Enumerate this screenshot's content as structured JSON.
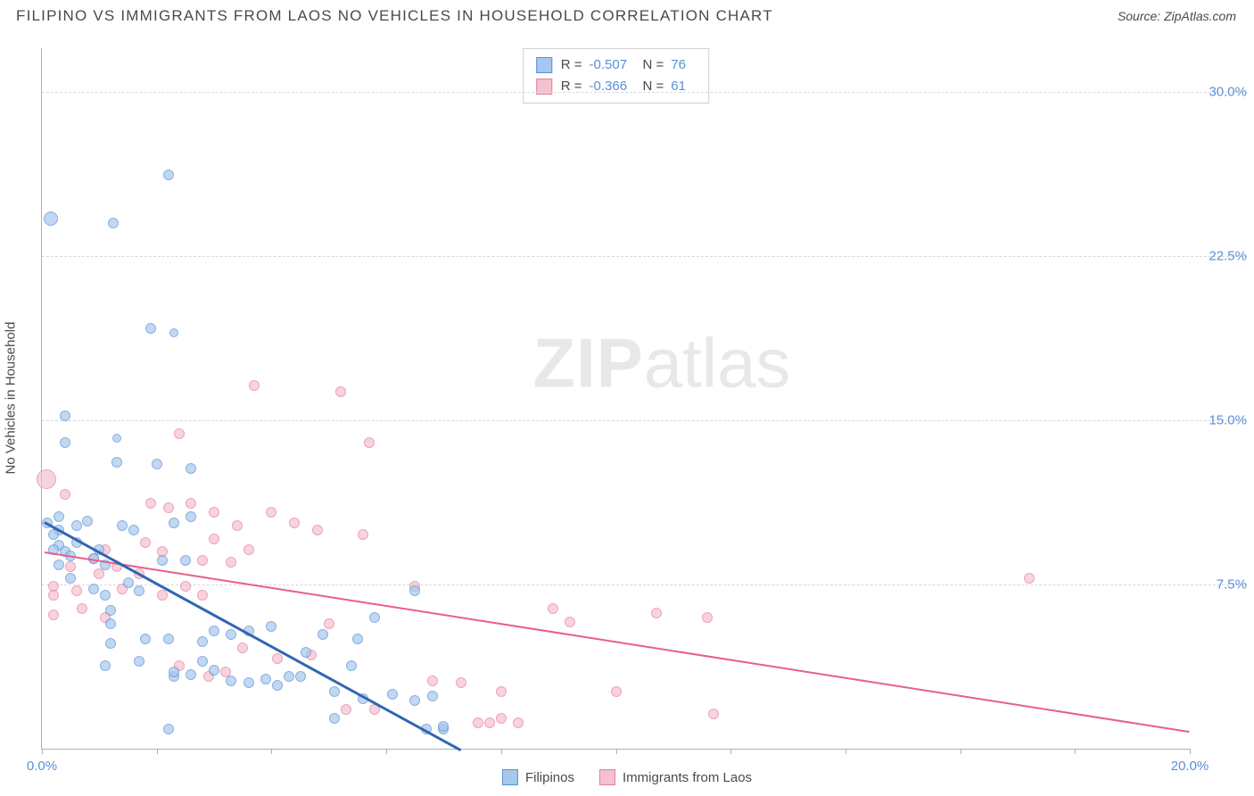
{
  "title": "FILIPINO VS IMMIGRANTS FROM LAOS NO VEHICLES IN HOUSEHOLD CORRELATION CHART",
  "source_label": "Source: ZipAtlas.com",
  "ylabel": "No Vehicles in Household",
  "watermark_bold": "ZIP",
  "watermark_rest": "atlas",
  "chart": {
    "xlim": [
      0,
      20
    ],
    "ylim": [
      0,
      32
    ],
    "xtick_labels": {
      "0": "0.0%",
      "20": "20.0%"
    },
    "xtick_positions": [
      0,
      2,
      4,
      6,
      8,
      10,
      12,
      14,
      16,
      18,
      20
    ],
    "ytick_labels": {
      "7.5": "7.5%",
      "15": "15.0%",
      "22.5": "22.5%",
      "30": "30.0%"
    },
    "grid_y": [
      7.5,
      15,
      22.5,
      30
    ],
    "colors": {
      "blue_fill": "#a6c8ec",
      "blue_stroke": "#5a8fd6",
      "pink_fill": "#f4c2ce",
      "pink_stroke": "#e87ba0",
      "blue_line": "#2f66b3",
      "pink_line": "#e65f8c",
      "axis_text": "#5a8fd6",
      "label_text": "#4a4a4a"
    }
  },
  "stats": [
    {
      "swatch_fill": "#a6c8ec",
      "swatch_stroke": "#5a8fd6",
      "r_label": "R =",
      "r": "-0.507",
      "n_label": "N =",
      "n": "76"
    },
    {
      "swatch_fill": "#f4c2ce",
      "swatch_stroke": "#e87ba0",
      "r_label": "R =",
      "r": "-0.366",
      "n_label": "N =",
      "n": "61"
    }
  ],
  "legend": [
    {
      "swatch_fill": "#a6c8ec",
      "swatch_stroke": "#5a8fd6",
      "label": "Filipinos"
    },
    {
      "swatch_fill": "#f4c2ce",
      "swatch_stroke": "#e87ba0",
      "label": "Immigrants from Laos"
    }
  ],
  "trend_lines": {
    "blue": {
      "x1": 0.05,
      "y1": 10.4,
      "x2": 7.3,
      "y2": 0,
      "color": "#2f66b3",
      "width": 2.5
    },
    "pink": {
      "x1": 0.05,
      "y1": 9.0,
      "x2": 20,
      "y2": 0.8,
      "color": "#e65f8c",
      "width": 2
    }
  },
  "series_blue": [
    {
      "x": 0.15,
      "y": 24.2,
      "r": 8
    },
    {
      "x": 1.25,
      "y": 24.0,
      "r": 6
    },
    {
      "x": 2.2,
      "y": 26.2,
      "r": 6
    },
    {
      "x": 1.9,
      "y": 19.2,
      "r": 6
    },
    {
      "x": 2.3,
      "y": 19.0,
      "r": 5
    },
    {
      "x": 0.4,
      "y": 15.2,
      "r": 6
    },
    {
      "x": 0.4,
      "y": 14.0,
      "r": 6
    },
    {
      "x": 1.3,
      "y": 13.1,
      "r": 6
    },
    {
      "x": 1.3,
      "y": 14.2,
      "r": 5
    },
    {
      "x": 2.0,
      "y": 13.0,
      "r": 6
    },
    {
      "x": 2.6,
      "y": 12.8,
      "r": 6
    },
    {
      "x": 0.3,
      "y": 10.6,
      "r": 6
    },
    {
      "x": 0.3,
      "y": 10.0,
      "r": 6
    },
    {
      "x": 0.3,
      "y": 9.3,
      "r": 6
    },
    {
      "x": 0.2,
      "y": 9.1,
      "r": 6
    },
    {
      "x": 0.4,
      "y": 9.0,
      "r": 6
    },
    {
      "x": 0.6,
      "y": 10.2,
      "r": 6
    },
    {
      "x": 0.8,
      "y": 10.4,
      "r": 6
    },
    {
      "x": 1.0,
      "y": 9.1,
      "r": 6
    },
    {
      "x": 1.4,
      "y": 10.2,
      "r": 6
    },
    {
      "x": 1.6,
      "y": 10.0,
      "r": 6
    },
    {
      "x": 2.3,
      "y": 10.3,
      "r": 6
    },
    {
      "x": 2.6,
      "y": 10.6,
      "r": 6
    },
    {
      "x": 0.3,
      "y": 8.4,
      "r": 6
    },
    {
      "x": 0.5,
      "y": 7.8,
      "r": 6
    },
    {
      "x": 0.9,
      "y": 7.3,
      "r": 6
    },
    {
      "x": 1.1,
      "y": 7.0,
      "r": 6
    },
    {
      "x": 1.1,
      "y": 8.4,
      "r": 6
    },
    {
      "x": 1.2,
      "y": 6.3,
      "r": 6
    },
    {
      "x": 1.2,
      "y": 5.7,
      "r": 6
    },
    {
      "x": 1.2,
      "y": 4.8,
      "r": 6
    },
    {
      "x": 1.5,
      "y": 7.6,
      "r": 6
    },
    {
      "x": 1.7,
      "y": 7.2,
      "r": 6
    },
    {
      "x": 1.8,
      "y": 5.0,
      "r": 6
    },
    {
      "x": 2.2,
      "y": 5.0,
      "r": 6
    },
    {
      "x": 2.3,
      "y": 3.3,
      "r": 6
    },
    {
      "x": 2.3,
      "y": 3.5,
      "r": 6
    },
    {
      "x": 2.6,
      "y": 3.4,
      "r": 6
    },
    {
      "x": 2.8,
      "y": 4.0,
      "r": 6
    },
    {
      "x": 2.8,
      "y": 4.9,
      "r": 6
    },
    {
      "x": 3.0,
      "y": 3.6,
      "r": 6
    },
    {
      "x": 3.0,
      "y": 5.4,
      "r": 6
    },
    {
      "x": 3.3,
      "y": 5.2,
      "r": 6
    },
    {
      "x": 3.3,
      "y": 3.1,
      "r": 6
    },
    {
      "x": 3.6,
      "y": 5.4,
      "r": 6
    },
    {
      "x": 3.6,
      "y": 3.0,
      "r": 6
    },
    {
      "x": 3.9,
      "y": 3.2,
      "r": 6
    },
    {
      "x": 4.1,
      "y": 2.9,
      "r": 6
    },
    {
      "x": 4.0,
      "y": 5.6,
      "r": 6
    },
    {
      "x": 4.3,
      "y": 3.3,
      "r": 6
    },
    {
      "x": 4.5,
      "y": 3.3,
      "r": 6
    },
    {
      "x": 4.6,
      "y": 4.4,
      "r": 6
    },
    {
      "x": 4.9,
      "y": 5.2,
      "r": 6
    },
    {
      "x": 5.1,
      "y": 2.6,
      "r": 6
    },
    {
      "x": 5.1,
      "y": 1.4,
      "r": 6
    },
    {
      "x": 5.4,
      "y": 3.8,
      "r": 6
    },
    {
      "x": 5.5,
      "y": 5.0,
      "r": 6
    },
    {
      "x": 5.6,
      "y": 2.3,
      "r": 6
    },
    {
      "x": 5.8,
      "y": 6.0,
      "r": 6
    },
    {
      "x": 6.1,
      "y": 2.5,
      "r": 6
    },
    {
      "x": 6.5,
      "y": 7.2,
      "r": 6
    },
    {
      "x": 6.5,
      "y": 2.2,
      "r": 6
    },
    {
      "x": 6.7,
      "y": 0.9,
      "r": 6
    },
    {
      "x": 6.8,
      "y": 2.4,
      "r": 6
    },
    {
      "x": 7.0,
      "y": 0.9,
      "r": 6
    },
    {
      "x": 7.0,
      "y": 1.0,
      "r": 6
    },
    {
      "x": 2.2,
      "y": 0.9,
      "r": 6
    },
    {
      "x": 1.1,
      "y": 3.8,
      "r": 6
    },
    {
      "x": 1.7,
      "y": 4.0,
      "r": 6
    },
    {
      "x": 0.9,
      "y": 8.7,
      "r": 6
    },
    {
      "x": 2.1,
      "y": 8.6,
      "r": 6
    },
    {
      "x": 2.5,
      "y": 8.6,
      "r": 6
    },
    {
      "x": 0.2,
      "y": 9.8,
      "r": 6
    },
    {
      "x": 0.1,
      "y": 10.3,
      "r": 6
    },
    {
      "x": 0.6,
      "y": 9.4,
      "r": 6
    },
    {
      "x": 0.5,
      "y": 8.8,
      "r": 6
    }
  ],
  "series_pink": [
    {
      "x": 0.08,
      "y": 12.3,
      "r": 11
    },
    {
      "x": 3.7,
      "y": 16.6,
      "r": 6
    },
    {
      "x": 5.2,
      "y": 16.3,
      "r": 6
    },
    {
      "x": 2.4,
      "y": 14.4,
      "r": 6
    },
    {
      "x": 5.7,
      "y": 14.0,
      "r": 6
    },
    {
      "x": 0.4,
      "y": 11.6,
      "r": 6
    },
    {
      "x": 1.9,
      "y": 11.2,
      "r": 6
    },
    {
      "x": 2.2,
      "y": 11.0,
      "r": 6
    },
    {
      "x": 2.6,
      "y": 11.2,
      "r": 6
    },
    {
      "x": 3.0,
      "y": 10.8,
      "r": 6
    },
    {
      "x": 3.4,
      "y": 10.2,
      "r": 6
    },
    {
      "x": 4.0,
      "y": 10.8,
      "r": 6
    },
    {
      "x": 4.4,
      "y": 10.3,
      "r": 6
    },
    {
      "x": 4.8,
      "y": 10.0,
      "r": 6
    },
    {
      "x": 5.6,
      "y": 9.8,
      "r": 6
    },
    {
      "x": 0.2,
      "y": 7.4,
      "r": 6
    },
    {
      "x": 0.2,
      "y": 7.0,
      "r": 6
    },
    {
      "x": 0.2,
      "y": 6.1,
      "r": 6
    },
    {
      "x": 0.5,
      "y": 8.3,
      "r": 6
    },
    {
      "x": 0.6,
      "y": 7.2,
      "r": 6
    },
    {
      "x": 0.7,
      "y": 6.4,
      "r": 6
    },
    {
      "x": 0.9,
      "y": 8.7,
      "r": 6
    },
    {
      "x": 1.0,
      "y": 8.0,
      "r": 6
    },
    {
      "x": 1.1,
      "y": 9.1,
      "r": 6
    },
    {
      "x": 1.3,
      "y": 8.3,
      "r": 6
    },
    {
      "x": 1.4,
      "y": 7.3,
      "r": 6
    },
    {
      "x": 1.7,
      "y": 8.0,
      "r": 6
    },
    {
      "x": 1.8,
      "y": 9.4,
      "r": 6
    },
    {
      "x": 2.1,
      "y": 9.0,
      "r": 6
    },
    {
      "x": 2.1,
      "y": 7.0,
      "r": 6
    },
    {
      "x": 2.5,
      "y": 7.4,
      "r": 6
    },
    {
      "x": 2.8,
      "y": 8.6,
      "r": 6
    },
    {
      "x": 2.8,
      "y": 7.0,
      "r": 6
    },
    {
      "x": 3.0,
      "y": 9.6,
      "r": 6
    },
    {
      "x": 3.3,
      "y": 8.5,
      "r": 6
    },
    {
      "x": 3.6,
      "y": 9.1,
      "r": 6
    },
    {
      "x": 2.4,
      "y": 3.8,
      "r": 6
    },
    {
      "x": 2.9,
      "y": 3.3,
      "r": 6
    },
    {
      "x": 3.2,
      "y": 3.5,
      "r": 6
    },
    {
      "x": 3.5,
      "y": 4.6,
      "r": 6
    },
    {
      "x": 4.1,
      "y": 4.1,
      "r": 6
    },
    {
      "x": 4.7,
      "y": 4.3,
      "r": 6
    },
    {
      "x": 5.0,
      "y": 5.7,
      "r": 6
    },
    {
      "x": 5.3,
      "y": 1.8,
      "r": 6
    },
    {
      "x": 5.8,
      "y": 1.8,
      "r": 6
    },
    {
      "x": 6.5,
      "y": 7.4,
      "r": 6
    },
    {
      "x": 6.8,
      "y": 3.1,
      "r": 6
    },
    {
      "x": 7.3,
      "y": 3.0,
      "r": 6
    },
    {
      "x": 7.6,
      "y": 1.2,
      "r": 6
    },
    {
      "x": 7.8,
      "y": 1.2,
      "r": 6
    },
    {
      "x": 8.0,
      "y": 1.4,
      "r": 6
    },
    {
      "x": 8.0,
      "y": 2.6,
      "r": 6
    },
    {
      "x": 8.3,
      "y": 1.2,
      "r": 6
    },
    {
      "x": 8.9,
      "y": 6.4,
      "r": 6
    },
    {
      "x": 9.2,
      "y": 5.8,
      "r": 6
    },
    {
      "x": 10.0,
      "y": 2.6,
      "r": 6
    },
    {
      "x": 10.7,
      "y": 6.2,
      "r": 6
    },
    {
      "x": 11.6,
      "y": 6.0,
      "r": 6
    },
    {
      "x": 11.7,
      "y": 1.6,
      "r": 6
    },
    {
      "x": 17.2,
      "y": 7.8,
      "r": 6
    },
    {
      "x": 1.1,
      "y": 6.0,
      "r": 6
    }
  ]
}
